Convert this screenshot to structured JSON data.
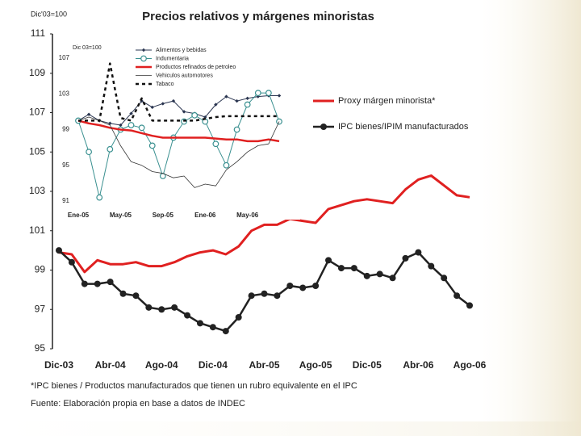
{
  "chart_data": [
    {
      "type": "line",
      "title": "Precios relativos y márgenes minoristas",
      "ylabel": "Dic'03=100",
      "notes": [
        "*IPC bienes / Productos manufacturados que tienen un rubro equivalente en el IPC",
        "Fuente: Elaboración propia en base a datos de INDEC"
      ],
      "categories": [
        "Dic-03",
        null,
        null,
        null,
        "Abr-04",
        null,
        null,
        null,
        "Ago-04",
        null,
        null,
        null,
        "Dic-04",
        null,
        null,
        null,
        "Abr-05",
        null,
        null,
        null,
        "Ago-05",
        null,
        null,
        null,
        "Dic-05",
        null,
        null,
        null,
        "Abr-06",
        null,
        null,
        null,
        "Ago-06"
      ],
      "ylim": [
        95,
        111
      ],
      "yticks": [
        95,
        97,
        99,
        101,
        103,
        105,
        107,
        109,
        111
      ],
      "grid": false,
      "series": [
        {
          "name": "Proxy márgen minorista*",
          "color": "#e02020",
          "linewidth": 3,
          "marker": "none",
          "values": [
            99.9,
            99.8,
            98.9,
            99.5,
            99.3,
            99.3,
            99.4,
            99.2,
            99.2,
            99.4,
            99.7,
            99.9,
            100.0,
            99.8,
            100.2,
            101.0,
            101.3,
            101.3,
            101.6,
            101.5,
            101.4,
            102.1,
            102.3,
            102.5,
            102.6,
            102.5,
            102.4,
            103.1,
            103.6,
            103.8,
            103.3,
            102.8,
            102.7
          ]
        },
        {
          "name": "IPC bienes/IPIM manufacturados",
          "color": "#222222",
          "linewidth": 2.5,
          "marker": "circle",
          "values": [
            100.0,
            99.4,
            98.3,
            98.3,
            98.4,
            97.8,
            97.7,
            97.1,
            97.0,
            97.1,
            96.7,
            96.3,
            96.1,
            95.9,
            96.6,
            97.7,
            97.8,
            97.7,
            98.2,
            98.1,
            98.2,
            99.5,
            99.1,
            99.1,
            98.7,
            98.8,
            98.6,
            99.6,
            99.9,
            99.2,
            98.6,
            97.7,
            97.2
          ]
        }
      ]
    },
    {
      "type": "line",
      "ylabel": "Dic 03=100",
      "categories": [
        "Ene-05",
        null,
        null,
        null,
        "May-05",
        null,
        null,
        null,
        "Sep-05",
        null,
        null,
        null,
        "Ene-06",
        null,
        null,
        null,
        "May-06",
        null,
        null,
        null
      ],
      "ylim": [
        91,
        107
      ],
      "yticks": [
        91,
        95,
        99,
        103,
        107
      ],
      "grid": false,
      "series": [
        {
          "name": "Alimentos y bebidas",
          "color": "#2a3550",
          "linewidth": 1,
          "marker": "diamond",
          "values": [
            100.0,
            100.7,
            100.0,
            99.7,
            99.5,
            100.8,
            102.2,
            101.5,
            101.9,
            102.2,
            101.0,
            100.8,
            100.4,
            101.8,
            102.7,
            102.2,
            102.5,
            102.7,
            102.8,
            102.8
          ]
        },
        {
          "name": "Indumentaria",
          "color": "#3a9090",
          "linewidth": 1,
          "marker": "hollow-circle",
          "values": [
            100.0,
            96.5,
            91.4,
            96.8,
            99.0,
            99.5,
            99.2,
            97.2,
            93.8,
            98.1,
            99.9,
            100.6,
            99.9,
            97.4,
            95.0,
            99.0,
            101.8,
            103.1,
            103.1,
            99.9
          ]
        },
        {
          "name": "Productos refinados de petroleo",
          "color": "#e02020",
          "linewidth": 2.5,
          "marker": "none",
          "values": [
            100.0,
            99.7,
            99.5,
            99.2,
            99.0,
            98.9,
            98.6,
            98.3,
            98.1,
            98.1,
            98.1,
            98.1,
            98.1,
            98.0,
            97.9,
            97.9,
            97.7,
            97.7,
            97.9,
            97.7
          ]
        },
        {
          "name": "Vehiculos automotores",
          "color": "#333333",
          "linewidth": 0.8,
          "marker": "none",
          "values": [
            100.0,
            100.4,
            100.0,
            99.5,
            97.2,
            95.4,
            95.0,
            94.3,
            94.1,
            93.6,
            93.8,
            92.5,
            92.9,
            92.7,
            94.5,
            95.4,
            96.5,
            97.2,
            97.4,
            99.9
          ]
        },
        {
          "name": "Tabaco",
          "color": "#111111",
          "linewidth": 2.5,
          "marker": "none",
          "dash": "4 4",
          "values": [
            100.0,
            100.0,
            100.0,
            106.4,
            100.3,
            100.0,
            102.5,
            100.0,
            100.0,
            100.0,
            100.0,
            100.0,
            100.2,
            100.4,
            100.5,
            100.5,
            100.5,
            100.5,
            100.5,
            100.5
          ]
        }
      ]
    }
  ]
}
